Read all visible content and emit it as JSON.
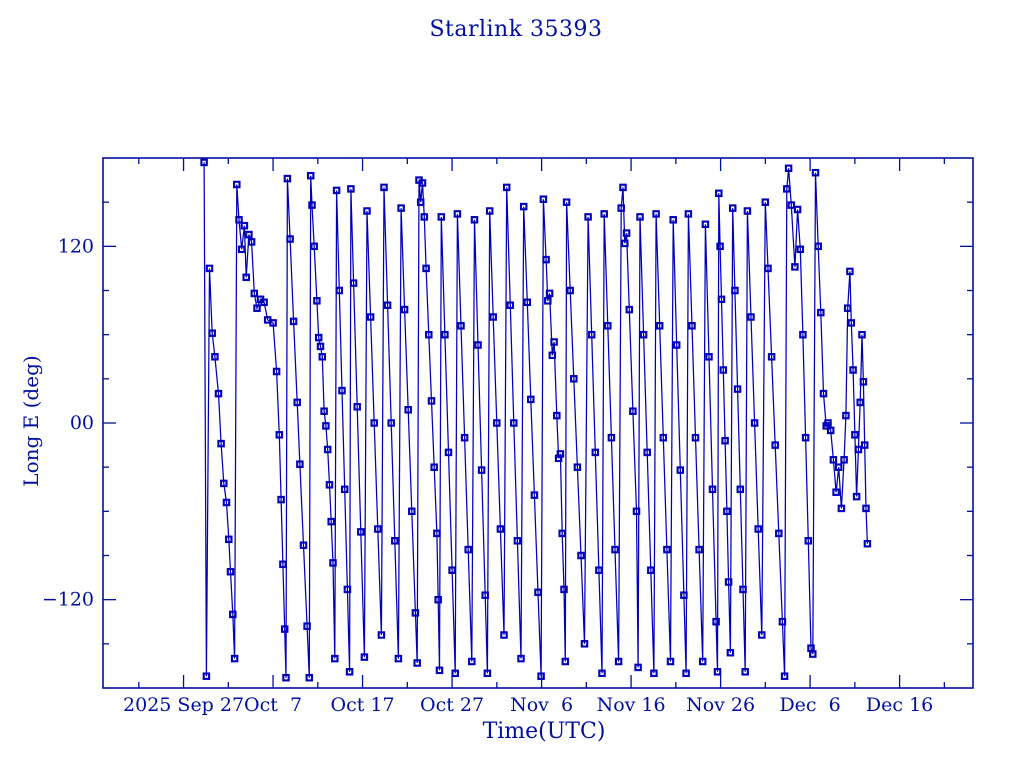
{
  "chart_data": {
    "type": "line",
    "title": "Starlink 35393",
    "xlabel": "Time(UTC)",
    "ylabel": "Long E (deg)",
    "x_unit": "days, 0 = left axis edge (9 days before first labeled tick)",
    "xlim": [
      0,
      97.2
    ],
    "ylim": [
      -180,
      180
    ],
    "grid": false,
    "legend": "none",
    "marker": "open-square",
    "colors": {
      "axes_text": "#000f9e",
      "data": "#0000bb",
      "background": "#ffffff"
    },
    "x_ticks_major": [
      {
        "day": 9,
        "label": "2025 Sep 27"
      },
      {
        "day": 19,
        "label": "Oct  7"
      },
      {
        "day": 29,
        "label": "Oct 17"
      },
      {
        "day": 39,
        "label": "Oct 27"
      },
      {
        "day": 49,
        "label": "Nov  6"
      },
      {
        "day": 59,
        "label": "Nov 16"
      },
      {
        "day": 69,
        "label": "Nov 26"
      },
      {
        "day": 79,
        "label": "Dec  6"
      },
      {
        "day": 89,
        "label": "Dec 16"
      }
    ],
    "x_ticks_minor_days": [
      4,
      14,
      24,
      34,
      44,
      54,
      64,
      74,
      84,
      94
    ],
    "y_ticks_major": [
      {
        "value": 120,
        "label": "120"
      },
      {
        "value": 0,
        "label": "00"
      },
      {
        "value": -120,
        "label": "-120"
      }
    ],
    "y_ticks_minor_values": [
      150,
      90,
      60,
      30,
      -30,
      -60,
      -90,
      -150
    ],
    "points_format": "[day, longitude_deg_east]",
    "points": [
      [
        11.3,
        177
      ],
      [
        11.55,
        -172
      ],
      [
        11.9,
        105
      ],
      [
        12.2,
        61
      ],
      [
        12.5,
        45
      ],
      [
        12.9,
        20
      ],
      [
        13.2,
        -14
      ],
      [
        13.5,
        -41
      ],
      [
        13.8,
        -54
      ],
      [
        14.05,
        -79
      ],
      [
        14.25,
        -101
      ],
      [
        14.5,
        -130
      ],
      [
        14.7,
        -160
      ],
      [
        14.95,
        162
      ],
      [
        15.2,
        138
      ],
      [
        15.5,
        118
      ],
      [
        15.8,
        134
      ],
      [
        16.0,
        99
      ],
      [
        16.3,
        128
      ],
      [
        16.6,
        123
      ],
      [
        16.9,
        88
      ],
      [
        17.2,
        78
      ],
      [
        17.6,
        84
      ],
      [
        18.0,
        82
      ],
      [
        18.4,
        70
      ],
      [
        19.0,
        68
      ],
      [
        19.4,
        35
      ],
      [
        19.7,
        -8
      ],
      [
        19.9,
        -52
      ],
      [
        20.1,
        -96
      ],
      [
        20.3,
        -140
      ],
      [
        20.45,
        -173
      ],
      [
        20.6,
        166
      ],
      [
        20.9,
        125
      ],
      [
        21.3,
        69
      ],
      [
        21.7,
        14
      ],
      [
        22.0,
        -28
      ],
      [
        22.4,
        -83
      ],
      [
        22.8,
        -138
      ],
      [
        23.05,
        -173
      ],
      [
        23.2,
        168
      ],
      [
        23.35,
        148
      ],
      [
        23.6,
        120
      ],
      [
        23.9,
        83
      ],
      [
        24.1,
        58
      ],
      [
        24.3,
        52
      ],
      [
        24.5,
        45
      ],
      [
        24.7,
        8
      ],
      [
        24.9,
        -2
      ],
      [
        25.1,
        -18
      ],
      [
        25.3,
        -42
      ],
      [
        25.5,
        -67
      ],
      [
        25.7,
        -95
      ],
      [
        25.9,
        -160
      ],
      [
        26.1,
        158
      ],
      [
        26.4,
        90
      ],
      [
        26.7,
        22
      ],
      [
        27.0,
        -45
      ],
      [
        27.3,
        -113
      ],
      [
        27.55,
        -169
      ],
      [
        27.7,
        159
      ],
      [
        28.0,
        95
      ],
      [
        28.4,
        11
      ],
      [
        28.8,
        -74
      ],
      [
        29.2,
        -159
      ],
      [
        29.5,
        144
      ],
      [
        29.9,
        72
      ],
      [
        30.3,
        0
      ],
      [
        30.7,
        -72
      ],
      [
        31.1,
        -144
      ],
      [
        31.4,
        160
      ],
      [
        31.8,
        80
      ],
      [
        32.2,
        0
      ],
      [
        32.6,
        -80
      ],
      [
        33.0,
        -160
      ],
      [
        33.3,
        146
      ],
      [
        33.7,
        77
      ],
      [
        34.1,
        9
      ],
      [
        34.5,
        -60
      ],
      [
        34.9,
        -129
      ],
      [
        35.1,
        -163
      ],
      [
        35.3,
        165
      ],
      [
        35.5,
        150
      ],
      [
        35.7,
        163
      ],
      [
        35.9,
        140
      ],
      [
        36.1,
        105
      ],
      [
        36.4,
        60
      ],
      [
        36.7,
        15
      ],
      [
        37.0,
        -30
      ],
      [
        37.3,
        -75
      ],
      [
        37.45,
        -120
      ],
      [
        37.6,
        -168
      ],
      [
        37.8,
        140
      ],
      [
        38.2,
        60
      ],
      [
        38.6,
        -20
      ],
      [
        39.0,
        -100
      ],
      [
        39.35,
        -170
      ],
      [
        39.6,
        142
      ],
      [
        40.0,
        66
      ],
      [
        40.4,
        -10
      ],
      [
        40.8,
        -86
      ],
      [
        41.2,
        -162
      ],
      [
        41.5,
        138
      ],
      [
        41.9,
        53
      ],
      [
        42.3,
        -32
      ],
      [
        42.7,
        -117
      ],
      [
        42.95,
        -170
      ],
      [
        43.2,
        144
      ],
      [
        43.6,
        72
      ],
      [
        44.0,
        0
      ],
      [
        44.4,
        -72
      ],
      [
        44.8,
        -144
      ],
      [
        45.1,
        160
      ],
      [
        45.5,
        80
      ],
      [
        45.9,
        0
      ],
      [
        46.3,
        -80
      ],
      [
        46.7,
        -160
      ],
      [
        47.0,
        147
      ],
      [
        47.4,
        82
      ],
      [
        47.8,
        16
      ],
      [
        48.2,
        -49
      ],
      [
        48.6,
        -115
      ],
      [
        48.95,
        -172
      ],
      [
        49.2,
        152
      ],
      [
        49.5,
        111
      ],
      [
        49.7,
        83
      ],
      [
        49.9,
        88
      ],
      [
        50.2,
        46
      ],
      [
        50.4,
        55
      ],
      [
        50.7,
        5
      ],
      [
        50.9,
        -24
      ],
      [
        51.1,
        -21
      ],
      [
        51.3,
        -75
      ],
      [
        51.5,
        -113
      ],
      [
        51.65,
        -162
      ],
      [
        51.8,
        150
      ],
      [
        52.2,
        90
      ],
      [
        52.6,
        30
      ],
      [
        53.0,
        -30
      ],
      [
        53.4,
        -90
      ],
      [
        53.8,
        -150
      ],
      [
        54.2,
        140
      ],
      [
        54.6,
        60
      ],
      [
        55.0,
        -20
      ],
      [
        55.4,
        -100
      ],
      [
        55.75,
        -170
      ],
      [
        56.0,
        142
      ],
      [
        56.4,
        66
      ],
      [
        56.8,
        -10
      ],
      [
        57.2,
        -86
      ],
      [
        57.6,
        -162
      ],
      [
        57.9,
        146
      ],
      [
        58.1,
        160
      ],
      [
        58.3,
        122
      ],
      [
        58.5,
        129
      ],
      [
        58.8,
        77
      ],
      [
        59.2,
        8
      ],
      [
        59.6,
        -60
      ],
      [
        59.78,
        -166
      ],
      [
        60.0,
        140
      ],
      [
        60.4,
        60
      ],
      [
        60.8,
        -20
      ],
      [
        61.2,
        -100
      ],
      [
        61.55,
        -170
      ],
      [
        61.8,
        142
      ],
      [
        62.2,
        66
      ],
      [
        62.6,
        -10
      ],
      [
        63.0,
        -86
      ],
      [
        63.4,
        -162
      ],
      [
        63.7,
        138
      ],
      [
        64.1,
        53
      ],
      [
        64.5,
        -32
      ],
      [
        64.9,
        -117
      ],
      [
        65.15,
        -170
      ],
      [
        65.4,
        142
      ],
      [
        65.8,
        66
      ],
      [
        66.2,
        -10
      ],
      [
        66.6,
        -86
      ],
      [
        67.0,
        -162
      ],
      [
        67.3,
        135
      ],
      [
        67.7,
        45
      ],
      [
        68.1,
        -45
      ],
      [
        68.5,
        -135
      ],
      [
        68.65,
        -169
      ],
      [
        68.8,
        156
      ],
      [
        68.95,
        120
      ],
      [
        69.1,
        84
      ],
      [
        69.3,
        36
      ],
      [
        69.5,
        -12
      ],
      [
        69.7,
        -60
      ],
      [
        69.9,
        -108
      ],
      [
        70.1,
        -156
      ],
      [
        70.35,
        146
      ],
      [
        70.6,
        90
      ],
      [
        70.9,
        23
      ],
      [
        71.2,
        -45
      ],
      [
        71.5,
        -113
      ],
      [
        71.75,
        -169
      ],
      [
        72.0,
        144
      ],
      [
        72.4,
        72
      ],
      [
        72.8,
        0
      ],
      [
        73.2,
        -72
      ],
      [
        73.6,
        -144
      ],
      [
        74.0,
        150
      ],
      [
        74.3,
        105
      ],
      [
        74.7,
        45
      ],
      [
        75.1,
        -15
      ],
      [
        75.5,
        -75
      ],
      [
        75.9,
        -135
      ],
      [
        76.15,
        -172
      ],
      [
        76.4,
        159
      ],
      [
        76.6,
        173
      ],
      [
        76.9,
        148
      ],
      [
        77.3,
        106
      ],
      [
        77.6,
        145
      ],
      [
        77.9,
        118
      ],
      [
        78.2,
        60
      ],
      [
        78.5,
        -10
      ],
      [
        78.8,
        -80
      ],
      [
        79.1,
        -153
      ],
      [
        79.3,
        -157
      ],
      [
        79.6,
        170
      ],
      [
        79.9,
        120
      ],
      [
        80.2,
        75
      ],
      [
        80.5,
        20
      ],
      [
        80.8,
        -2
      ],
      [
        81.0,
        0
      ],
      [
        81.3,
        -5
      ],
      [
        81.6,
        -25
      ],
      [
        81.9,
        -47
      ],
      [
        82.2,
        -30
      ],
      [
        82.5,
        -58
      ],
      [
        82.8,
        -25
      ],
      [
        83.0,
        5
      ],
      [
        83.2,
        78
      ],
      [
        83.45,
        103
      ],
      [
        83.6,
        68
      ],
      [
        83.8,
        36
      ],
      [
        84.0,
        -8
      ],
      [
        84.2,
        -50
      ],
      [
        84.4,
        -18
      ],
      [
        84.6,
        14
      ],
      [
        84.8,
        60
      ],
      [
        84.95,
        28
      ],
      [
        85.1,
        -15
      ],
      [
        85.25,
        -58
      ],
      [
        85.4,
        -82
      ]
    ]
  }
}
